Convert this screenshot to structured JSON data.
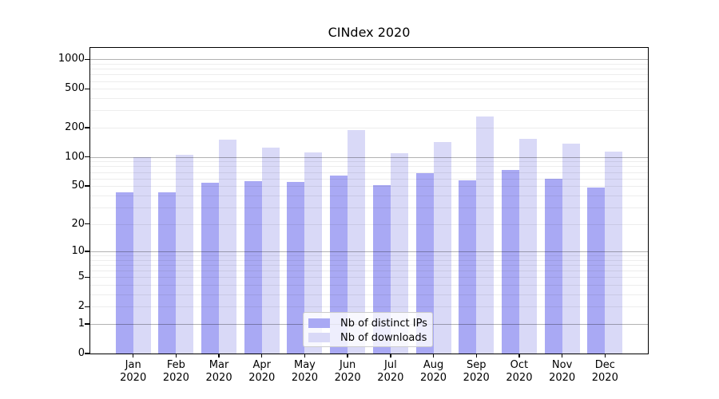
{
  "chart_data": {
    "type": "bar",
    "title": "CINdex 2020",
    "categories": [
      "Jan",
      "Feb",
      "Mar",
      "Apr",
      "May",
      "Jun",
      "Jul",
      "Aug",
      "Sep",
      "Oct",
      "Nov",
      "Dec"
    ],
    "year_label": "2020",
    "series": [
      {
        "name": "Nb of distinct IPs",
        "color": "#a9a9f4",
        "values": [
          43,
          43,
          54,
          56,
          55,
          64,
          51,
          68,
          57,
          73,
          60,
          48
        ]
      },
      {
        "name": "Nb of downloads",
        "color": "#d9d9f7",
        "values": [
          100,
          106,
          152,
          125,
          112,
          190,
          110,
          143,
          260,
          155,
          138,
          114
        ]
      }
    ],
    "xlabel": "",
    "ylabel": "",
    "yscale": "log(v+1)",
    "yticks": [
      0,
      1,
      2,
      5,
      10,
      20,
      50,
      100,
      200,
      500,
      1000
    ],
    "ylim": [
      0,
      1000
    ],
    "grid": "horizontal major+minor, drawn over bars",
    "legend_position": "inside bottom-center",
    "colors": {
      "axis": "#000000",
      "grid_minor": "rgba(0,0,0,0.07)",
      "grid_major": "rgba(0,0,0,0.30)",
      "legend_border": "#cccccc",
      "background": "#ffffff"
    }
  }
}
